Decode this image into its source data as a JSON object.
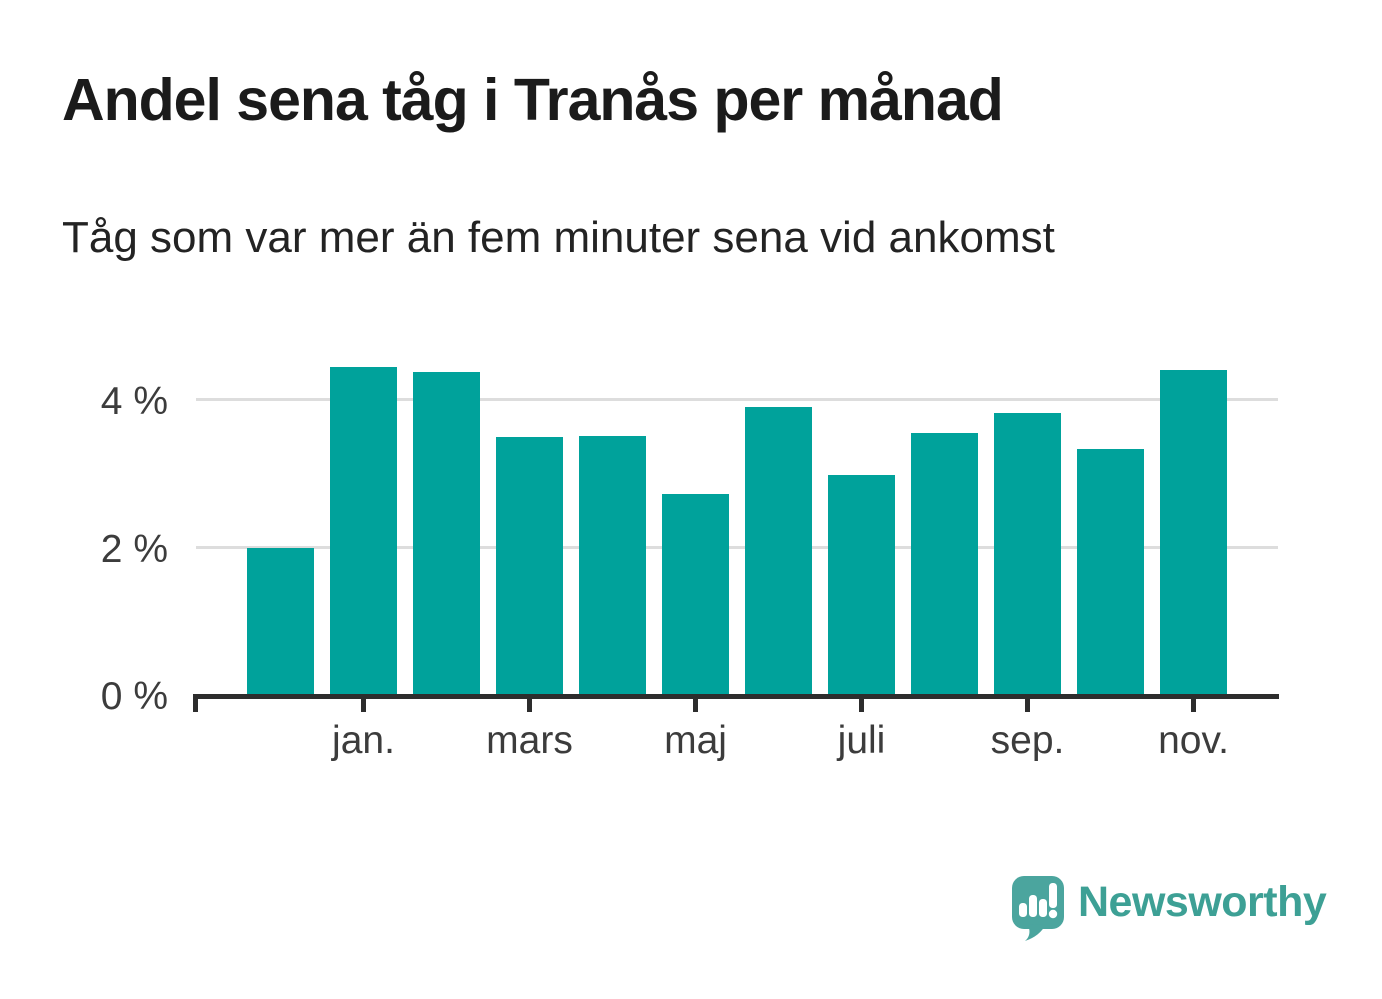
{
  "title": "Andel sena tåg i Tranås per månad",
  "subtitle": "Tåg som var mer än fem minuter sena vid ankomst",
  "chart_data": {
    "type": "bar",
    "title": "Andel sena tåg i Tranås per månad",
    "subtitle": "Tåg som var mer än fem minuter sena vid ankomst",
    "categories": [
      "",
      "jan.",
      "",
      "mars",
      "",
      "maj",
      "",
      "juli",
      "",
      "sep.",
      "",
      "nov."
    ],
    "values": [
      1.98,
      4.44,
      4.37,
      3.48,
      3.5,
      2.71,
      3.89,
      2.97,
      3.54,
      3.81,
      3.32,
      4.39
    ],
    "unit": "%",
    "xlabel": "",
    "ylabel": "",
    "ylim": [
      0,
      4.7
    ],
    "yticks": [
      {
        "value": 0,
        "label": "0 %"
      },
      {
        "value": 2,
        "label": "2 %"
      },
      {
        "value": 4,
        "label": "4 %"
      }
    ],
    "grid": "horizontal-gridlines-behind-bars",
    "legend": "none",
    "bar_color": "#00a29b"
  },
  "branding": {
    "name": "Newsworthy",
    "icon": "newsworthy-speech-bubble-bar-chart-icon",
    "text_color": "#3da095",
    "icon_color": "#4ba59e"
  },
  "colors": {
    "background": "#ffffff",
    "title": "#1b1b1b",
    "subtitle": "#232323",
    "axis_label": "#3c3c3c",
    "axis_line": "#2d2d2d",
    "gridline": "#dddddd"
  }
}
